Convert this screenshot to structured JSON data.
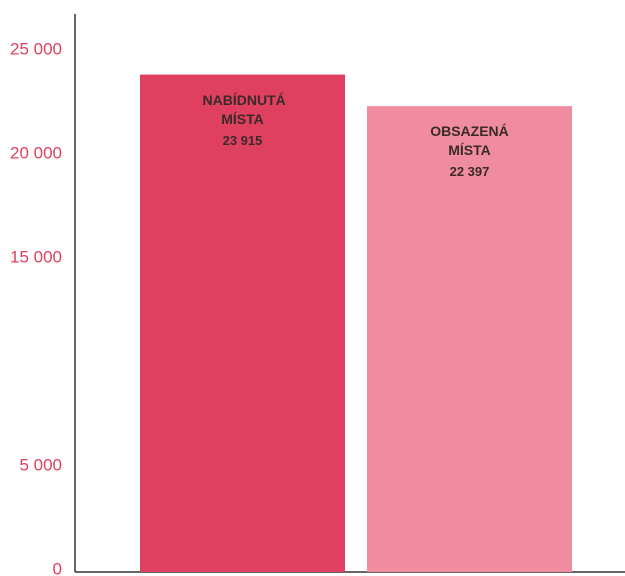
{
  "chart_data": {
    "type": "bar",
    "categories": [
      "NABÍDNUTÁ MÍSTA",
      "OBSAZENÁ MÍSTA"
    ],
    "values": [
      23915,
      22397
    ],
    "value_labels": [
      "23 915",
      "22 397"
    ],
    "colors": [
      "#e0405f",
      "#f08ca0"
    ],
    "ylim": [
      0,
      25000
    ],
    "yticks": [
      {
        "value": 0,
        "label": "0"
      },
      {
        "value": 5000,
        "label": "5 000"
      },
      {
        "value": 15000,
        "label": "15 000"
      },
      {
        "value": 20000,
        "label": "20 000"
      },
      {
        "value": 25000,
        "label": "25 000"
      }
    ],
    "tick_color": "#e0405f",
    "grid": false
  }
}
